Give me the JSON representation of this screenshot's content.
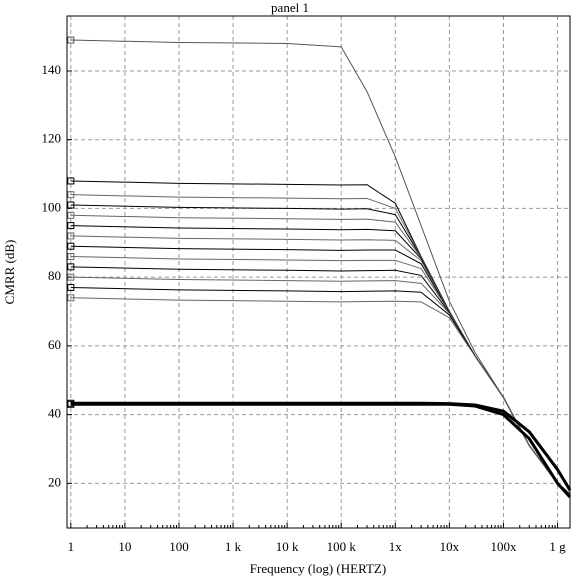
{
  "chart_data": {
    "type": "line",
    "title": "panel 1",
    "x_label": "Frequency (log) (HERTZ)",
    "y_label": "CMRR (dB)",
    "xscale": "log",
    "grid": true,
    "xlim": [
      0.85,
      1700000000
    ],
    "ylim": [
      7,
      156
    ],
    "xticks": [
      1,
      10,
      100,
      {
        "value": 1000,
        "label": "1 k"
      },
      {
        "value": 10000,
        "label": "10 k"
      },
      {
        "value": 100000,
        "label": "100 k"
      },
      {
        "value": 1000000,
        "label": "1x"
      },
      {
        "value": 10000000,
        "label": "10x"
      },
      {
        "value": 100000000,
        "label": "100x"
      },
      {
        "value": 1000000000,
        "label": "1 g"
      }
    ],
    "yticks": [
      20,
      40,
      60,
      80,
      100,
      120,
      140
    ],
    "x": [
      1,
      100,
      10000,
      100000,
      300000,
      1000000,
      3000000,
      10000000,
      30000000,
      100000000,
      300000000,
      1000000000,
      1700000000
    ],
    "series": [
      {
        "color": "#555555",
        "line_width": 1,
        "values": [
          149,
          148.3,
          148,
          147,
          134,
          115,
          95,
          73,
          58,
          45,
          31,
          20,
          17
        ]
      },
      {
        "color": "#000000",
        "line_width": 1,
        "values": [
          108,
          107.3,
          107,
          106.8,
          106.9,
          101.5,
          86,
          70,
          57,
          45,
          31,
          20,
          17
        ]
      },
      {
        "color": "#666666",
        "line_width": 1,
        "values": [
          104,
          103.3,
          103,
          102.8,
          102.9,
          100,
          85.9,
          70,
          57,
          45,
          31,
          20,
          17
        ]
      },
      {
        "color": "#000000",
        "line_width": 1,
        "values": [
          101,
          100.3,
          100,
          99.8,
          99.9,
          98.2,
          85.8,
          70,
          57,
          45,
          31,
          20,
          17
        ]
      },
      {
        "color": "#666666",
        "line_width": 1,
        "values": [
          98,
          97.3,
          97,
          96.8,
          96.9,
          96,
          85.7,
          70,
          57,
          45,
          31,
          20,
          17
        ]
      },
      {
        "color": "#000000",
        "line_width": 1,
        "values": [
          95,
          94.3,
          94,
          93.8,
          93.9,
          93.5,
          85.4,
          70,
          57,
          45,
          31,
          20,
          17
        ]
      },
      {
        "color": "#666666",
        "line_width": 1,
        "values": [
          92,
          91.3,
          91,
          90.8,
          90.9,
          90.7,
          84.8,
          70,
          57,
          45,
          31,
          20,
          17
        ]
      },
      {
        "color": "#000000",
        "line_width": 1,
        "values": [
          89,
          88.3,
          88,
          87.8,
          87.9,
          87.9,
          83.9,
          69.9,
          57,
          45,
          31,
          20,
          17
        ]
      },
      {
        "color": "#666666",
        "line_width": 1,
        "values": [
          86,
          85.3,
          85,
          84.8,
          84.9,
          84.9,
          82.5,
          69.9,
          57,
          45,
          31,
          20,
          17
        ]
      },
      {
        "color": "#000000",
        "line_width": 1,
        "values": [
          83,
          82.3,
          82,
          81.8,
          81.9,
          82,
          80.5,
          69.7,
          57,
          45,
          31,
          20,
          17
        ]
      },
      {
        "color": "#666666",
        "line_width": 1,
        "values": [
          80,
          79.3,
          79,
          78.8,
          78.9,
          79,
          78.2,
          69.5,
          57,
          45,
          31,
          20,
          17
        ]
      },
      {
        "color": "#000000",
        "line_width": 1,
        "values": [
          77,
          76.3,
          76,
          75.8,
          75.9,
          76,
          75.6,
          69,
          57,
          45,
          31,
          20,
          17
        ]
      },
      {
        "color": "#666666",
        "line_width": 1,
        "values": [
          74,
          73.3,
          73,
          72.8,
          72.9,
          73,
          72.8,
          68.2,
          56.9,
          45,
          31,
          20,
          17
        ]
      },
      {
        "color": "#000000",
        "line_width": 3,
        "values": [
          43,
          43,
          43,
          43,
          43,
          43,
          43,
          43,
          42.5,
          40,
          33,
          20,
          16
        ]
      },
      {
        "color": "#000000",
        "line_width": 3,
        "values": [
          43.3,
          43.3,
          43.3,
          43.3,
          43.3,
          43.3,
          43.3,
          43.2,
          42.8,
          41,
          35,
          24,
          18
        ]
      }
    ]
  }
}
